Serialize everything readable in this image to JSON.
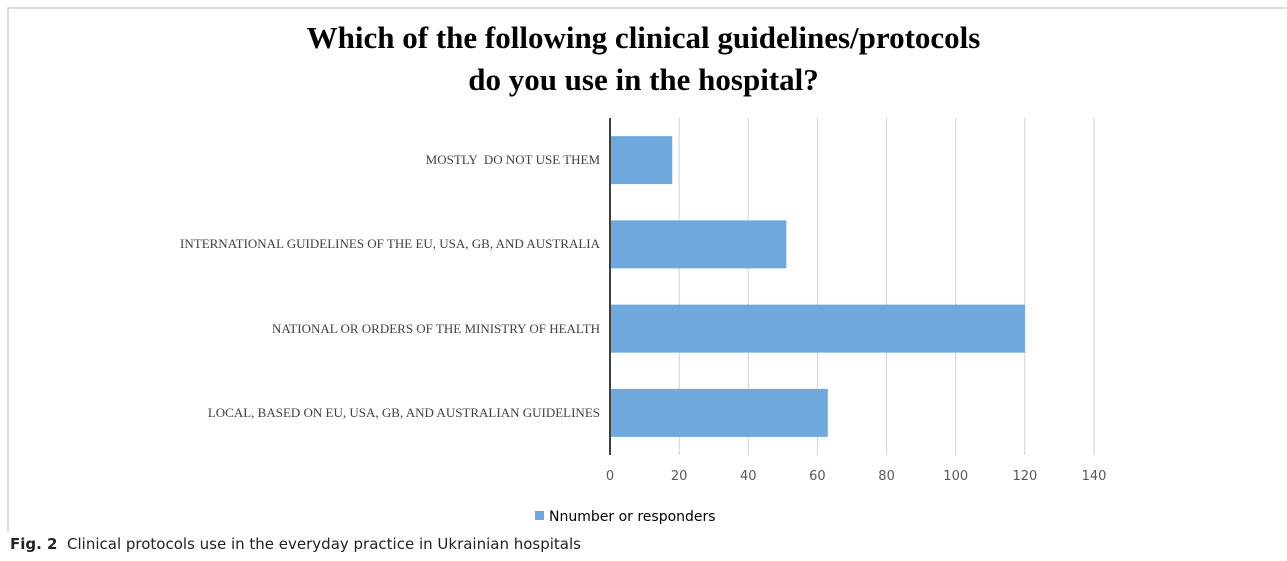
{
  "chart_data": {
    "type": "bar",
    "orientation": "horizontal",
    "title": [
      "Which of the following clinical guidelines/protocols",
      "do you use in the hospital?"
    ],
    "categories": [
      "MOSTLY  DO NOT USE THEM",
      "INTERNATIONAL GUIDELINES OF THE EU, USA, GB, AND AUSTRALIA",
      "NATIONAL OR ORDERS OF THE MINISTRY OF HEALTH",
      "LOCAL, BASED ON EU, USA, GB, AND AUSTRALIAN GUIDELINES"
    ],
    "series": [
      {
        "name": "Nnumber or responders",
        "color": "#6fa8dc",
        "values": [
          18,
          51,
          120,
          63
        ]
      }
    ],
    "xlim": [
      0,
      140
    ],
    "xticks": [
      0,
      20,
      40,
      60,
      80,
      100,
      120,
      140
    ],
    "grid": true,
    "legend": "bottom"
  },
  "caption": {
    "label": "Fig. 2",
    "text": "Clinical protocols use in the everyday practice in Ukrainian hospitals"
  }
}
